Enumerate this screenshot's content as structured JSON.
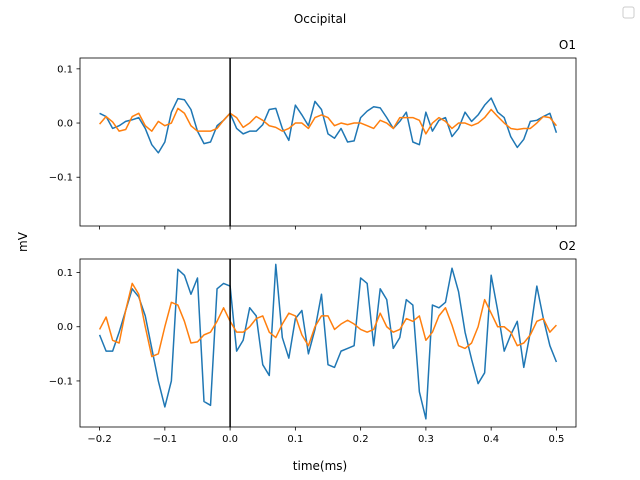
{
  "figure": {
    "suptitle": "Occipital",
    "xlabel": "time(ms)",
    "ylabel": "mV"
  },
  "colors": {
    "series_a": "#1f77b4",
    "series_b": "#ff7f0e",
    "vline": "#000000"
  },
  "chart_data": [
    {
      "type": "line",
      "title": "O1",
      "xlim": [
        -0.23,
        0.53
      ],
      "ylim": [
        -0.19,
        0.12
      ],
      "xticks": [
        -0.2,
        -0.1,
        0.0,
        0.1,
        0.2,
        0.3,
        0.4,
        0.5
      ],
      "xtick_labels_visible": false,
      "yticks": [
        -0.1,
        0.0,
        0.1
      ],
      "ytick_labels": [
        "−0.1",
        "0.0",
        "0.1"
      ],
      "vline_x": 0.0,
      "x": [
        -0.2,
        -0.19,
        -0.18,
        -0.17,
        -0.16,
        -0.15,
        -0.14,
        -0.13,
        -0.12,
        -0.11,
        -0.1,
        -0.09,
        -0.08,
        -0.07,
        -0.06,
        -0.05,
        -0.04,
        -0.03,
        -0.02,
        -0.01,
        0.0,
        0.01,
        0.02,
        0.03,
        0.04,
        0.05,
        0.06,
        0.07,
        0.08,
        0.09,
        0.1,
        0.11,
        0.12,
        0.13,
        0.14,
        0.15,
        0.16,
        0.17,
        0.18,
        0.19,
        0.2,
        0.21,
        0.22,
        0.23,
        0.24,
        0.25,
        0.26,
        0.27,
        0.28,
        0.29,
        0.3,
        0.31,
        0.32,
        0.33,
        0.34,
        0.35,
        0.36,
        0.37,
        0.38,
        0.39,
        0.4,
        0.41,
        0.42,
        0.43,
        0.44,
        0.45,
        0.46,
        0.47,
        0.48,
        0.49,
        0.5
      ],
      "series": [
        {
          "color": "#1f77b4",
          "values": [
            0.018,
            0.012,
            -0.01,
            -0.005,
            0.003,
            0.006,
            0.01,
            -0.01,
            -0.04,
            -0.055,
            -0.035,
            0.02,
            0.045,
            0.043,
            0.025,
            -0.015,
            -0.038,
            -0.035,
            -0.005,
            0.005,
            0.018,
            -0.01,
            -0.02,
            -0.015,
            -0.015,
            -0.003,
            0.025,
            0.027,
            -0.01,
            -0.032,
            0.033,
            0.015,
            -0.005,
            0.04,
            0.025,
            -0.02,
            -0.028,
            -0.01,
            -0.035,
            -0.033,
            0.01,
            0.022,
            0.03,
            0.028,
            0.01,
            -0.01,
            0.003,
            0.02,
            -0.035,
            -0.04,
            0.02,
            -0.015,
            0.005,
            0.01,
            -0.025,
            -0.01,
            0.02,
            0.003,
            0.015,
            0.033,
            0.046,
            0.02,
            0.01,
            -0.025,
            -0.045,
            -0.03,
            0.003,
            0.005,
            0.012,
            0.018,
            -0.018
          ]
        },
        {
          "color": "#ff7f0e",
          "values": [
            -0.002,
            0.012,
            0.002,
            -0.015,
            -0.012,
            0.012,
            0.018,
            -0.005,
            -0.015,
            0.003,
            -0.005,
            0.0,
            0.027,
            0.018,
            -0.005,
            -0.015,
            -0.015,
            -0.015,
            -0.01,
            0.005,
            0.018,
            0.01,
            -0.008,
            0.0,
            0.012,
            0.005,
            -0.005,
            -0.008,
            -0.015,
            -0.01,
            0.0,
            0.0,
            -0.01,
            0.01,
            0.015,
            0.01,
            -0.005,
            0.0,
            -0.003,
            0.0,
            0.0,
            -0.005,
            -0.01,
            0.005,
            0.0,
            -0.01,
            0.01,
            0.01,
            0.01,
            0.005,
            -0.02,
            0.0,
            0.01,
            0.003,
            -0.01,
            0.0,
            0.0,
            -0.005,
            0.0,
            0.01,
            0.025,
            0.012,
            0.0,
            -0.01,
            -0.012,
            -0.01,
            -0.01,
            0.0,
            0.012,
            0.01,
            -0.005
          ]
        }
      ]
    },
    {
      "type": "line",
      "title": "O2",
      "xlim": [
        -0.23,
        0.53
      ],
      "ylim": [
        -0.185,
        0.125
      ],
      "xticks": [
        -0.2,
        -0.1,
        0.0,
        0.1,
        0.2,
        0.3,
        0.4,
        0.5
      ],
      "xtick_labels": [
        "−0.2",
        "−0.1",
        "0.0",
        "0.1",
        "0.2",
        "0.3",
        "0.4",
        "0.5"
      ],
      "yticks": [
        -0.1,
        0.0,
        0.1
      ],
      "ytick_labels": [
        "−0.1",
        "0.0",
        "0.1"
      ],
      "vline_x": 0.0,
      "x": [
        -0.2,
        -0.19,
        -0.18,
        -0.17,
        -0.16,
        -0.15,
        -0.14,
        -0.13,
        -0.12,
        -0.11,
        -0.1,
        -0.09,
        -0.08,
        -0.07,
        -0.06,
        -0.05,
        -0.04,
        -0.03,
        -0.02,
        -0.01,
        0.0,
        0.01,
        0.02,
        0.03,
        0.04,
        0.05,
        0.06,
        0.07,
        0.08,
        0.09,
        0.1,
        0.11,
        0.12,
        0.13,
        0.14,
        0.15,
        0.16,
        0.17,
        0.18,
        0.19,
        0.2,
        0.21,
        0.22,
        0.23,
        0.24,
        0.25,
        0.26,
        0.27,
        0.28,
        0.29,
        0.3,
        0.31,
        0.32,
        0.33,
        0.34,
        0.35,
        0.36,
        0.37,
        0.38,
        0.39,
        0.4,
        0.41,
        0.42,
        0.43,
        0.44,
        0.45,
        0.46,
        0.47,
        0.48,
        0.49,
        0.5
      ],
      "series": [
        {
          "color": "#1f77b4",
          "values": [
            -0.015,
            -0.045,
            -0.045,
            -0.01,
            0.03,
            0.07,
            0.055,
            0.02,
            -0.04,
            -0.1,
            -0.148,
            -0.1,
            0.106,
            0.095,
            0.06,
            0.09,
            -0.138,
            -0.145,
            0.07,
            0.08,
            0.075,
            -0.045,
            -0.025,
            0.035,
            0.02,
            -0.07,
            -0.09,
            0.115,
            -0.02,
            -0.058,
            0.015,
            0.03,
            -0.05,
            -0.005,
            0.06,
            -0.07,
            -0.075,
            -0.045,
            -0.04,
            -0.035,
            0.09,
            0.08,
            -0.035,
            0.07,
            0.05,
            -0.04,
            -0.02,
            0.05,
            0.04,
            -0.12,
            -0.17,
            0.04,
            0.035,
            0.045,
            0.108,
            0.065,
            -0.01,
            -0.06,
            -0.105,
            -0.085,
            0.095,
            0.03,
            -0.045,
            -0.015,
            0.01,
            -0.075,
            -0.01,
            0.075,
            0.015,
            -0.035,
            -0.065
          ]
        },
        {
          "color": "#ff7f0e",
          "values": [
            -0.005,
            0.018,
            -0.025,
            -0.03,
            0.03,
            0.08,
            0.06,
            0.0,
            -0.055,
            -0.05,
            0.0,
            0.045,
            0.04,
            0.01,
            -0.03,
            -0.028,
            -0.015,
            -0.01,
            0.01,
            0.035,
            0.01,
            -0.01,
            -0.01,
            0.0,
            0.015,
            0.02,
            -0.01,
            -0.02,
            0.005,
            0.025,
            0.02,
            -0.015,
            -0.035,
            0.0,
            0.02,
            0.02,
            -0.005,
            0.005,
            0.012,
            0.005,
            -0.005,
            -0.01,
            -0.005,
            0.025,
            0.0,
            -0.01,
            -0.005,
            0.015,
            0.01,
            0.02,
            -0.025,
            -0.01,
            0.02,
            0.035,
            0.003,
            -0.035,
            -0.04,
            -0.03,
            0.0,
            0.05,
            0.025,
            0.0,
            0.0,
            -0.01,
            -0.035,
            -0.03,
            -0.015,
            0.01,
            0.015,
            -0.01,
            0.003
          ]
        }
      ]
    }
  ]
}
